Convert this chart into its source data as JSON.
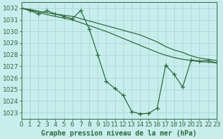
{
  "title": "Graphe pression niveau de la mer (hPa)",
  "bg_color": "#c8eded",
  "grid_color": "#a0d4d4",
  "line_color": "#2d6b3c",
  "xlim": [
    0,
    23
  ],
  "ylim": [
    1022.5,
    1032.5
  ],
  "yticks": [
    1023,
    1024,
    1025,
    1026,
    1027,
    1028,
    1029,
    1030,
    1031,
    1032
  ],
  "xticks": [
    0,
    1,
    2,
    3,
    4,
    5,
    6,
    7,
    8,
    9,
    10,
    11,
    12,
    13,
    14,
    15,
    16,
    17,
    18,
    19,
    20,
    21,
    22,
    23
  ],
  "series_main_x": [
    0,
    1,
    2,
    3,
    4,
    5,
    6,
    7,
    8,
    9,
    10,
    11,
    12,
    13,
    14,
    15,
    16,
    17,
    18,
    19,
    20,
    21,
    22,
    23
  ],
  "series_main_y": [
    1032.0,
    1031.8,
    1031.5,
    1031.8,
    1031.5,
    1031.3,
    1031.1,
    1031.8,
    1030.2,
    1028.0,
    1025.7,
    1025.1,
    1024.5,
    1023.1,
    1022.9,
    1022.95,
    1023.4,
    1027.1,
    1026.3,
    1025.2,
    1027.55,
    1027.45,
    1027.5,
    1027.3
  ],
  "series_top_x": [
    0,
    1,
    2,
    3,
    4,
    5,
    6,
    7,
    8,
    9,
    10,
    11,
    12,
    13,
    14,
    15,
    16,
    17,
    18,
    19,
    20,
    21,
    22,
    23
  ],
  "series_top_y": [
    1032.0,
    1031.9,
    1031.75,
    1031.6,
    1031.5,
    1031.4,
    1031.3,
    1031.1,
    1030.9,
    1030.7,
    1030.5,
    1030.3,
    1030.1,
    1029.9,
    1029.7,
    1029.4,
    1029.1,
    1028.7,
    1028.4,
    1028.2,
    1027.9,
    1027.7,
    1027.6,
    1027.5
  ],
  "series_bot_x": [
    0,
    1,
    2,
    3,
    4,
    5,
    6,
    7,
    8,
    9,
    10,
    11,
    12,
    13,
    14,
    15,
    16,
    17,
    18,
    19,
    20,
    21,
    22,
    23
  ],
  "series_bot_y": [
    1032.0,
    1031.85,
    1031.65,
    1031.45,
    1031.3,
    1031.15,
    1031.0,
    1030.75,
    1030.5,
    1030.25,
    1030.0,
    1029.7,
    1029.4,
    1029.1,
    1028.8,
    1028.5,
    1028.2,
    1027.95,
    1027.75,
    1027.6,
    1027.5,
    1027.4,
    1027.35,
    1027.3
  ]
}
